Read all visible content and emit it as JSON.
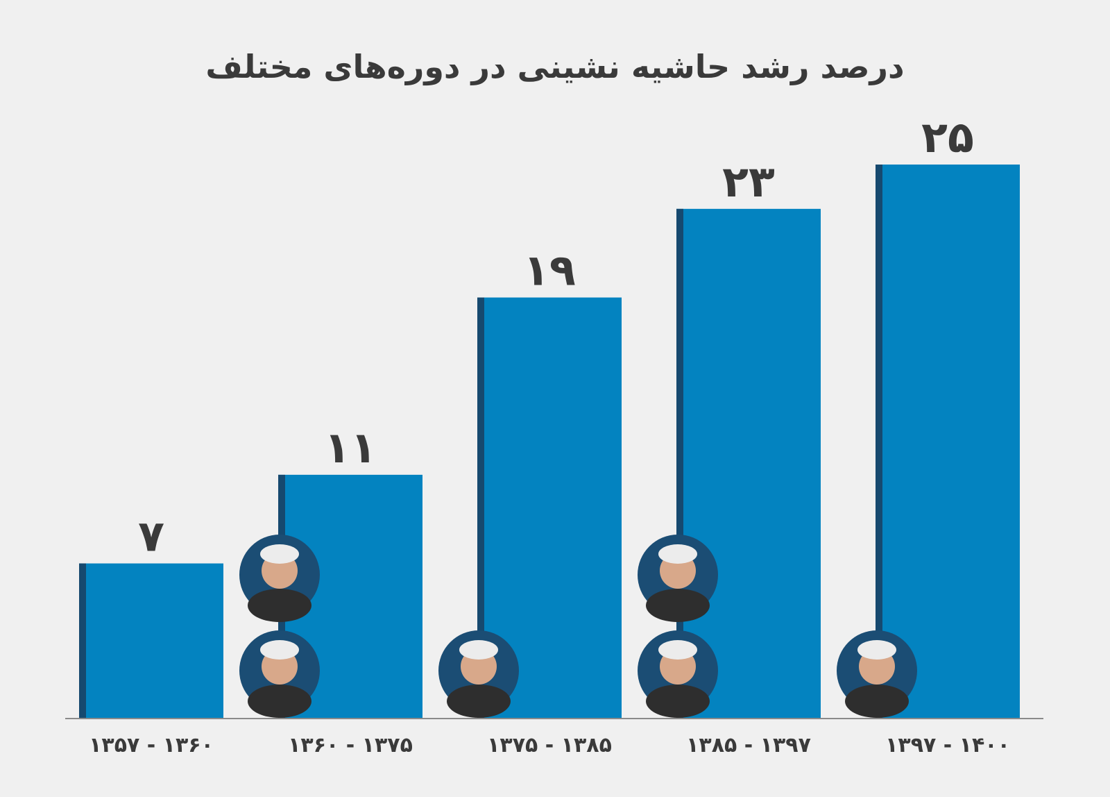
{
  "chart_data": {
    "type": "bar",
    "title": "درصد رشد حاشیه نشینی در دوره‌های مختلف",
    "xlabel": "",
    "ylabel": "",
    "ylim": [
      0,
      25
    ],
    "grid": false,
    "legend": "none",
    "categories": [
      "۱۳۵۷ - ۱۳۶۰",
      "۱۳۶۰ - ۱۳۷۵",
      "۱۳۷۵ - ۱۳۸۵",
      "۱۳۸۵ - ۱۳۹۷",
      "۱۳۹۷ - ۱۴۰۰"
    ],
    "values": [
      7,
      11,
      19,
      23,
      25
    ],
    "value_labels": [
      "۷",
      "۱۱",
      "۱۹",
      "۲۳",
      "۲۵"
    ],
    "bar_color": "#0383c0",
    "bar_edge_color": "#16496f",
    "axis_color": "#8a8a8a",
    "text_color": "#3a3a3a",
    "portraits": [
      {
        "bar": 1,
        "icons": [
          "portrait-icon",
          "portrait-icon"
        ]
      },
      {
        "bar": 2,
        "icons": [
          "portrait-icon"
        ]
      },
      {
        "bar": 3,
        "icons": [
          "portrait-icon",
          "portrait-icon"
        ]
      },
      {
        "bar": 4,
        "icons": [
          "portrait-icon"
        ]
      }
    ]
  }
}
